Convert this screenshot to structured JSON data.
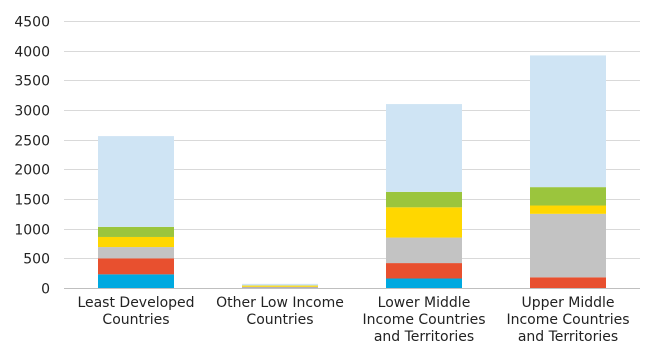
{
  "chart_data": {
    "type": "bar",
    "stacked": true,
    "categories": [
      "Least Developed Countries",
      "Other Low Income Countries",
      "Lower Middle Income Countries and Territories",
      "Upper Middle Income Countries and Territories"
    ],
    "category_label_lines": [
      [
        "Least Developed",
        "Countries"
      ],
      [
        "Other Low Income",
        "Countries"
      ],
      [
        "Lower Middle",
        "Income Countries",
        "and Territories"
      ],
      [
        "Upper Middle",
        "Income Countries",
        "and Territories"
      ]
    ],
    "series": [
      {
        "color": "#00a9e0",
        "values": [
          230,
          5,
          160,
          0
        ]
      },
      {
        "color": "#e8502f",
        "values": [
          270,
          5,
          260,
          180
        ]
      },
      {
        "color": "#c3c3c3",
        "values": [
          190,
          10,
          430,
          1070
        ]
      },
      {
        "color": "#ffd700",
        "values": [
          170,
          20,
          510,
          140
        ]
      },
      {
        "color": "#9bc53d",
        "values": [
          170,
          5,
          260,
          310
        ]
      },
      {
        "color": "#cfe4f4",
        "values": [
          1530,
          25,
          1480,
          2220
        ]
      }
    ],
    "ylim": [
      0,
      4500
    ],
    "yticks": [
      0,
      500,
      1000,
      1500,
      2000,
      2500,
      3000,
      3500,
      4000,
      4500
    ],
    "grid": true,
    "legend": "none",
    "title": "",
    "xlabel": "",
    "ylabel": ""
  }
}
